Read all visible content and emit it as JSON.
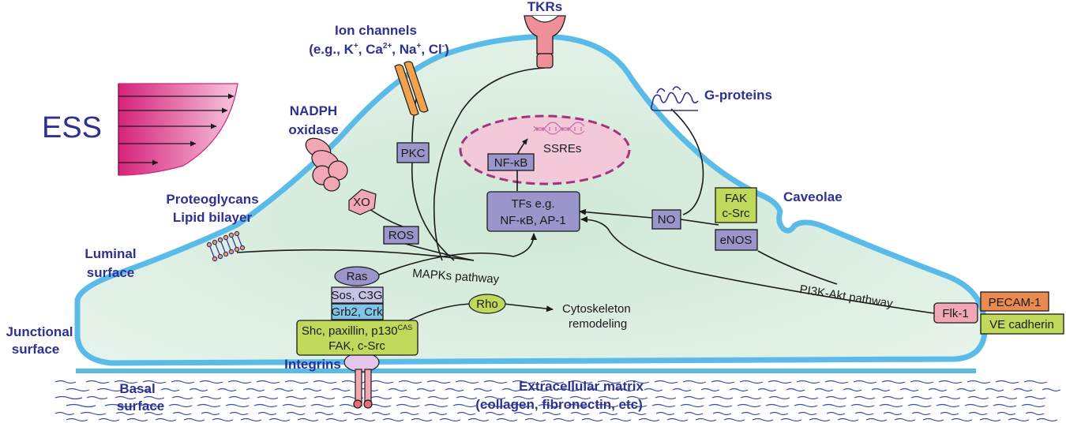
{
  "ess": {
    "label": "ESS",
    "color": "#d6237a"
  },
  "labels": {
    "tkrs": "TKRs",
    "ion_channels_title": "Ion channels",
    "ion_channels_detail": {
      "open": "(e.g., K",
      "sup1": "+",
      "ca": ", Ca",
      "sup2": "2+",
      "na": ", Na",
      "sup3": "+",
      "cl": ", Cl",
      "sup4": "-",
      "close": ")"
    },
    "g_proteins": "G-proteins",
    "nadph_line1": "NADPH",
    "nadph_line2": "oxidase",
    "caveolae": "Caveolae",
    "proteoglycans": "Proteoglycans",
    "lipid_bilayer": "Lipid bilayer",
    "luminal_line1": "Luminal",
    "luminal_line2": "surface",
    "junctional_line1": "Junctional",
    "junctional_line2": "surface",
    "basal_line1": "Basal",
    "basal_line2": "surface",
    "integrins": "Integrins",
    "ecm_line1": "Extracellular matrix",
    "ecm_line2": "(collagen, fibronectin, etc)"
  },
  "molecules": {
    "pkc": "PKC",
    "xo": "XO",
    "ros": "ROS",
    "nfkb_nuclear": "NF-κB",
    "ssres": "SSREs",
    "tfs_line1": "TFs e.g.",
    "tfs_line2": "NF-κB, AP-1",
    "no": "NO",
    "fak": "FAK",
    "csrc": "c-Src",
    "enos": "eNOS",
    "ras": "Ras",
    "sos": "Sos, C3G",
    "grb2": "Grb2, Crk",
    "shc_line1": "Shc, paxillin, p130",
    "shc_sup": "CAS",
    "shc_line2": "FAK, c-Src",
    "rho": "Rho",
    "flk1": "Flk-1",
    "pecam": "PECAM-1",
    "vecad": "VE cadherin"
  },
  "pathways": {
    "mapks": "MAPKs pathway",
    "pi3k": "PI3K-Akt pathway",
    "cyto_line1": "Cytoskeleton",
    "cyto_line2": "remodeling"
  },
  "colors": {
    "cell_fill": "#d3eadb",
    "membrane": "#5bbbe8",
    "label_text": "#2e3191",
    "box_purple": "#9a96cc",
    "box_light_purple": "#c7c3e6",
    "box_green": "#c0d95b",
    "box_blue": "#7fc3e6",
    "box_salmon": "#e98a4e",
    "box_pink": "#f1a8b4",
    "nucleus": "#f3c9d9",
    "nucleus_border": "#a0357a",
    "receptor": "#ef8f9a",
    "ion_channel": "#f2a24a",
    "ecm_wave": "#3a4fa3"
  }
}
